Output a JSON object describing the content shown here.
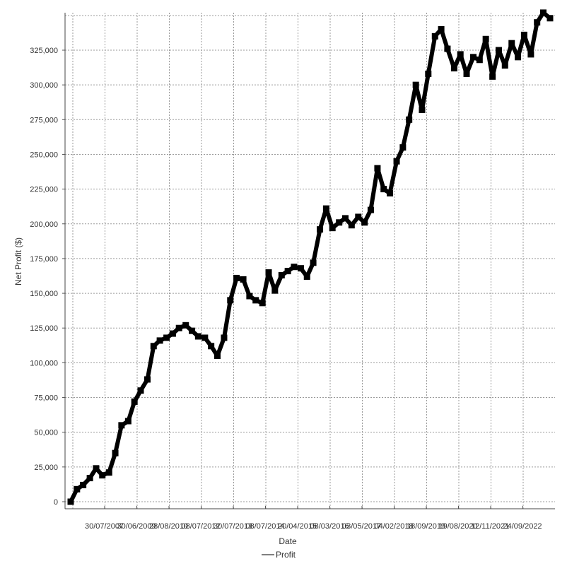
{
  "chart_data": {
    "type": "line",
    "xlabel": "Date",
    "ylabel": "Net Profit ($)",
    "ylim": [
      0,
      350000
    ],
    "grid": true,
    "legend_placement": "bottom-center",
    "colors": {
      "series": "#000000",
      "grid": "#9a9a9a",
      "background": "#ffffff"
    },
    "yticks": [
      {
        "value": 0,
        "label": "0"
      },
      {
        "value": 25000,
        "label": "25,000"
      },
      {
        "value": 50000,
        "label": "50,000"
      },
      {
        "value": 75000,
        "label": "75,000"
      },
      {
        "value": 100000,
        "label": "100,000"
      },
      {
        "value": 125000,
        "label": "125,000"
      },
      {
        "value": 150000,
        "label": "150,000"
      },
      {
        "value": 175000,
        "label": "175,000"
      },
      {
        "value": 200000,
        "label": "200,000"
      },
      {
        "value": 225000,
        "label": "225,000"
      },
      {
        "value": 250000,
        "label": "250,000"
      },
      {
        "value": 275000,
        "label": "275,000"
      },
      {
        "value": 300000,
        "label": "300,000"
      },
      {
        "value": 325000,
        "label": "325,000"
      }
    ],
    "xticks": [
      "30/07/2007",
      "30/06/2009",
      "28/08/2010",
      "08/07/2012",
      "30/07/2013",
      "08/07/2014",
      "20/04/2015",
      "08/03/2016",
      "03/05/2017",
      "04/02/2018",
      "18/09/2019",
      "19/08/2020",
      "12/11/2021",
      "24/09/2022"
    ],
    "series": [
      {
        "name": "Profit",
        "x": [
          0,
          1.3,
          2.6,
          4,
          5.3,
          6.6,
          8,
          9.3,
          10.6,
          12,
          13.3,
          14.6,
          16,
          17.3,
          18.6,
          20,
          21.3,
          22.6,
          24,
          25.3,
          26.6,
          28,
          29.3,
          30.6,
          32,
          33.3,
          34.6,
          36,
          37.3,
          38.6,
          40,
          41.3,
          42.6,
          44,
          45.3,
          46.6,
          48,
          49.3,
          50.6,
          52,
          53.3,
          54.6,
          56,
          57.3,
          58.6,
          60,
          61.3,
          62.6,
          64,
          65.3,
          66.6,
          68,
          69.3,
          70.6,
          72,
          73.3,
          74.6,
          76,
          77.3,
          78.6,
          80,
          81.3,
          82.6,
          84,
          85.3,
          86.6,
          88,
          89.3,
          90.6,
          92,
          93.3,
          94.6,
          96,
          97.3,
          98.6,
          100
        ],
        "values": [
          0,
          9000,
          12000,
          17000,
          24000,
          19000,
          21000,
          35000,
          55000,
          58000,
          72000,
          80000,
          88000,
          112000,
          116000,
          118000,
          121000,
          125000,
          127000,
          123000,
          119000,
          118000,
          112000,
          105000,
          118000,
          145000,
          161000,
          160000,
          148000,
          145000,
          143000,
          165000,
          152000,
          163000,
          166000,
          169000,
          168000,
          162000,
          172000,
          196000,
          211000,
          197000,
          201000,
          204000,
          199000,
          205000,
          201000,
          210000,
          240000,
          225000,
          222000,
          245000,
          255000,
          275000,
          300000,
          282000,
          308000,
          335000,
          340000,
          326000,
          312000,
          322000,
          308000,
          320000,
          318000,
          333000,
          306000,
          325000,
          314000,
          330000,
          320000,
          336000,
          322000,
          345000,
          352000,
          348000
        ]
      }
    ]
  }
}
